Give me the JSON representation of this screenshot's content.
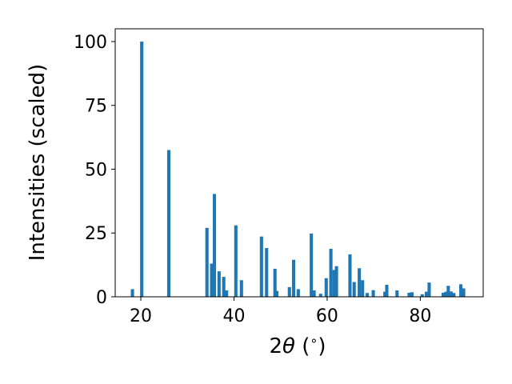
{
  "chart_data": {
    "type": "bar",
    "title": "",
    "xlabel_parts": [
      "2",
      "θ",
      " (",
      "∘",
      ")"
    ],
    "ylabel": "Intensities (scaled)",
    "xlim": [
      14.5,
      93.5
    ],
    "ylim": [
      0,
      105
    ],
    "xticks": [
      20,
      40,
      60,
      80
    ],
    "xtick_labels": [
      "20",
      "40",
      "60",
      "80"
    ],
    "yticks": [
      0,
      25,
      50,
      75,
      100
    ],
    "ytick_labels": [
      "0",
      "25",
      "50",
      "75",
      "100"
    ],
    "bar_width_deg": 0.7,
    "bar_color": "#1f77b4",
    "grid": false,
    "legend": "none",
    "series": [
      {
        "x": [
          18.2,
          20.2,
          26.0,
          34.2,
          35.2,
          35.8,
          36.8,
          37.8,
          38.4,
          40.4,
          41.6,
          45.9,
          47.0,
          48.8,
          49.2,
          51.9,
          52.8,
          53.8,
          56.6,
          57.2,
          58.6,
          59.8,
          60.8,
          61.5,
          62.0,
          64.9,
          65.8,
          66.9,
          67.6,
          68.6,
          69.9,
          72.4,
          72.8,
          75.0,
          77.6,
          78.2,
          80.4,
          81.3,
          81.9,
          84.9,
          85.5,
          86.0,
          86.6,
          87.2,
          88.7,
          89.3
        ],
        "values": [
          3.0,
          100.0,
          57.5,
          27.0,
          13.0,
          40.3,
          10.0,
          7.8,
          2.5,
          28.0,
          6.5,
          23.6,
          19.1,
          11.0,
          2.3,
          3.8,
          14.5,
          3.0,
          24.8,
          2.5,
          1.2,
          7.3,
          18.8,
          10.5,
          12.0,
          16.6,
          5.8,
          11.2,
          6.5,
          1.5,
          2.6,
          2.0,
          4.7,
          2.5,
          1.6,
          1.8,
          1.0,
          2.0,
          5.6,
          1.6,
          2.0,
          4.3,
          2.1,
          1.5,
          4.9,
          3.3
        ]
      }
    ]
  }
}
